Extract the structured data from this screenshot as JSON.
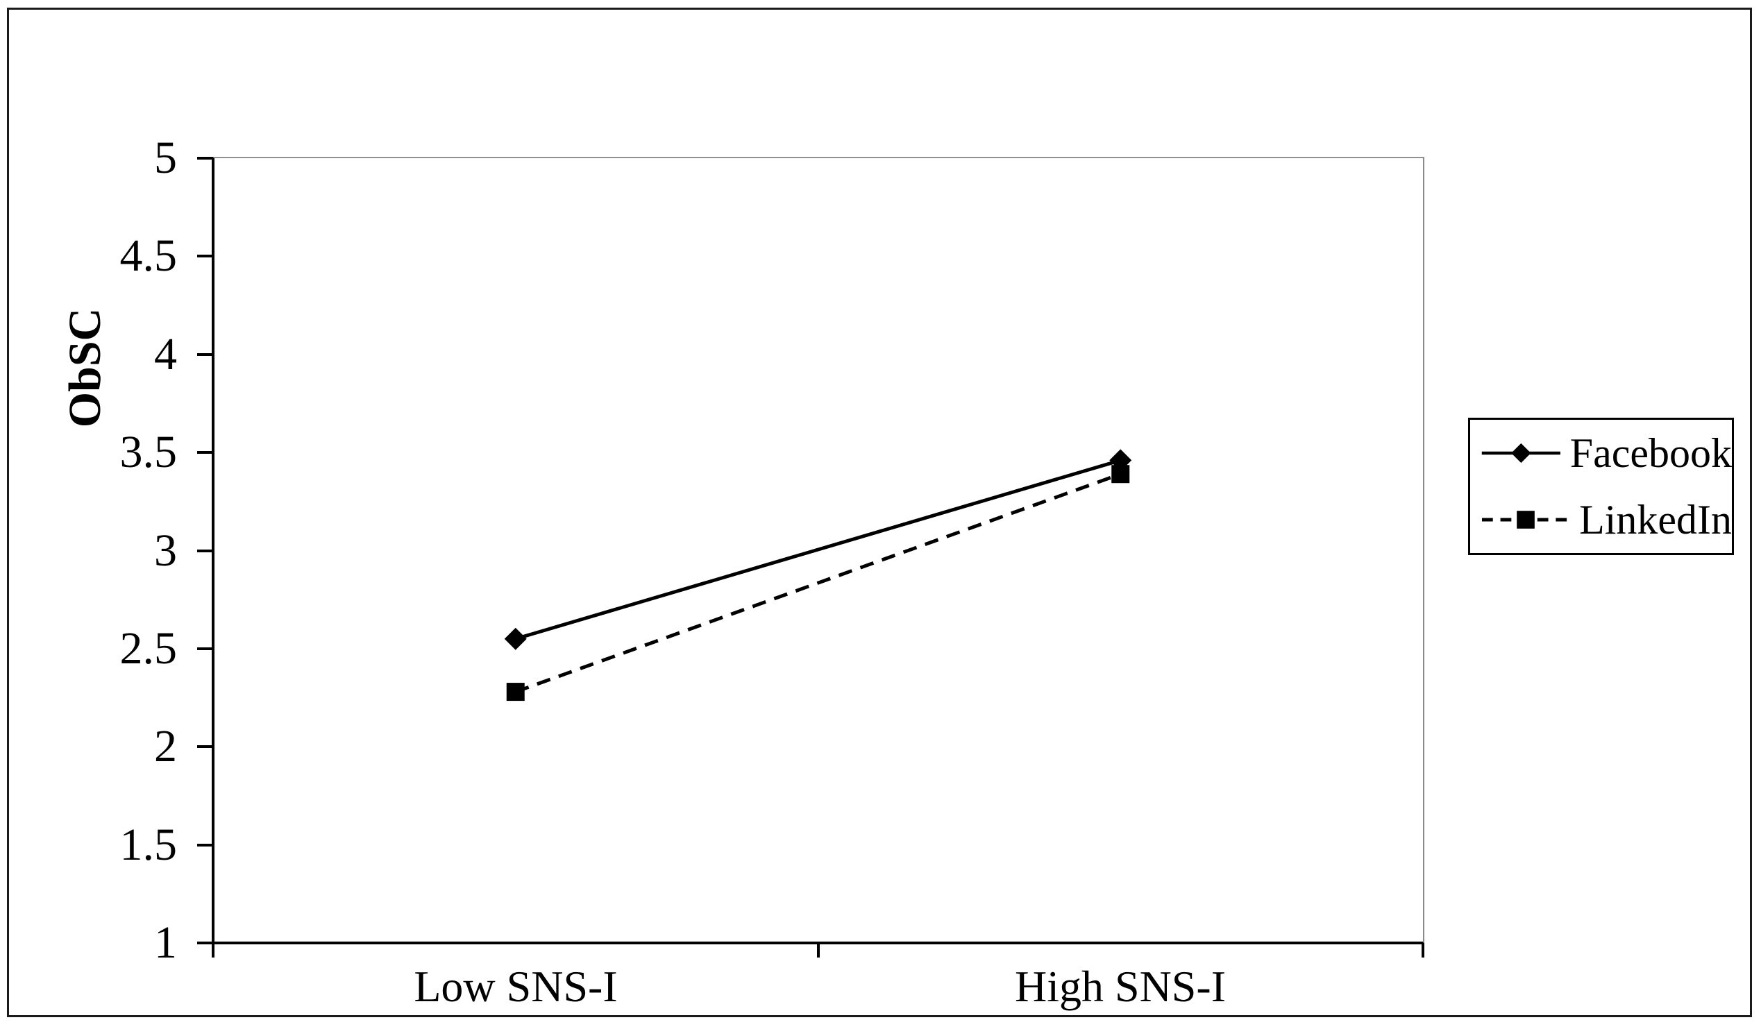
{
  "chart_data": {
    "type": "line",
    "title": "",
    "xlabel": "",
    "ylabel": "ObSC",
    "categories": [
      "Low SNS-I",
      "High SNS-I"
    ],
    "series": [
      {
        "name": "Facebook",
        "values": [
          2.55,
          3.46
        ],
        "line_style": "solid",
        "marker": "diamond",
        "color": "#000000"
      },
      {
        "name": "LinkedIn",
        "values": [
          2.28,
          3.39
        ],
        "line_style": "dashed",
        "marker": "square",
        "color": "#000000"
      }
    ],
    "ylim": [
      1,
      5
    ],
    "ytick_step": 0.5,
    "ytick_labels": [
      "5",
      "4.5",
      "4",
      "3.5",
      "3",
      "2.5",
      "2",
      "1.5",
      "1"
    ],
    "grid": false,
    "legend_position": "middle-right"
  },
  "colors": {
    "background": "#ffffff",
    "axis": "#000000",
    "plot_frame_top_right": "#909090",
    "figure_border": "#1a1a1a"
  }
}
